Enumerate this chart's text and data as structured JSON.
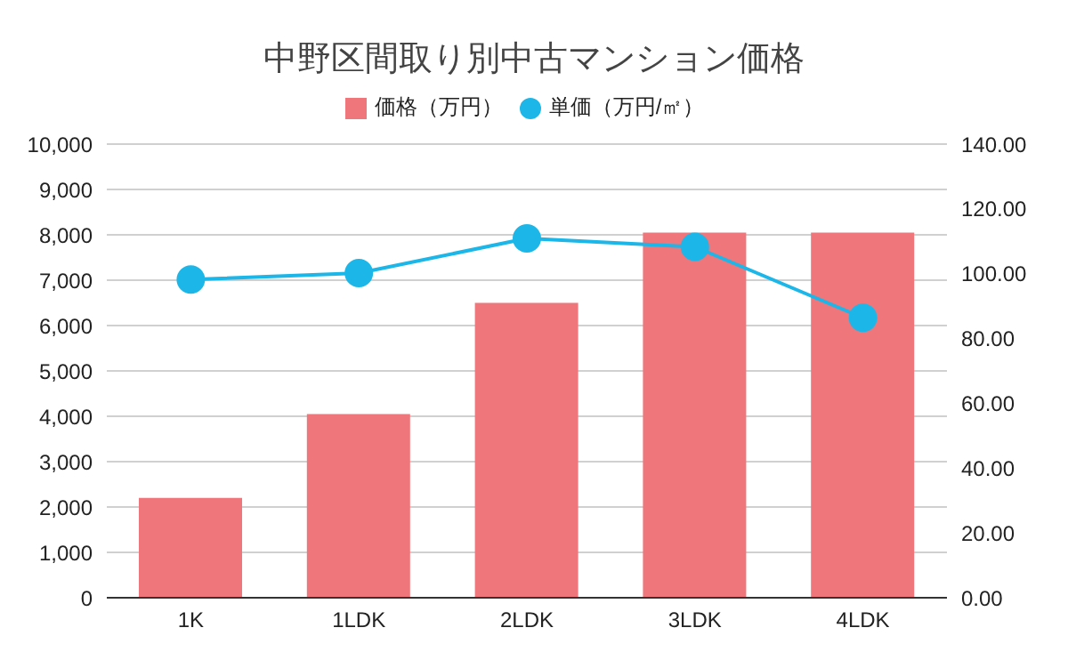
{
  "chart_data": {
    "type": "bar",
    "title": "中野区間取り別中古マンション価格",
    "categories": [
      "1K",
      "1LDK",
      "2LDK",
      "3LDK",
      "4LDK"
    ],
    "series": [
      {
        "name": "価格（万円）",
        "color": "#ef767a",
        "values": [
          2200,
          4050,
          6500,
          8050,
          8050
        ]
      },
      {
        "name": "単価（万円/㎡）",
        "type": "line",
        "axis": "y2",
        "color": "#1cb7e8",
        "values": [
          98.2,
          100.2,
          110.9,
          108.3,
          86.4
        ]
      }
    ],
    "ylim": [
      0,
      10000
    ],
    "yticks": [
      {
        "value": 0,
        "label": "0"
      },
      {
        "value": 1000,
        "label": "1,000"
      },
      {
        "value": 2000,
        "label": "2,000"
      },
      {
        "value": 3000,
        "label": "3,000"
      },
      {
        "value": 4000,
        "label": "4,000"
      },
      {
        "value": 5000,
        "label": "5,000"
      },
      {
        "value": 6000,
        "label": "6,000"
      },
      {
        "value": 7000,
        "label": "7,000"
      },
      {
        "value": 8000,
        "label": "8,000"
      },
      {
        "value": 9000,
        "label": "9,000"
      },
      {
        "value": 10000,
        "label": "10,000"
      }
    ],
    "y2lim": [
      0,
      140
    ],
    "y2ticks": [
      {
        "value": 0,
        "label": "0.00"
      },
      {
        "value": 20,
        "label": "20.00"
      },
      {
        "value": 40,
        "label": "40.00"
      },
      {
        "value": 60,
        "label": "60.00"
      },
      {
        "value": 80,
        "label": "80.00"
      },
      {
        "value": 100,
        "label": "100.00"
      },
      {
        "value": 120,
        "label": "120.00"
      },
      {
        "value": 140,
        "label": "140.00"
      }
    ],
    "grid": "y",
    "legend": "top",
    "marker": "circle"
  }
}
